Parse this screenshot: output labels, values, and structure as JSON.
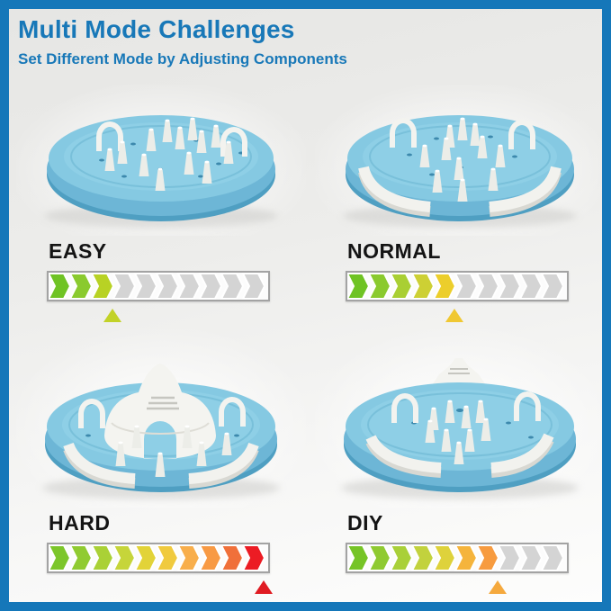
{
  "page": {
    "border_color": "#1577b9",
    "background_top": "#e6e6e4",
    "background_bottom": "#fdfdfc"
  },
  "header": {
    "title": "Multi Mode Challenges",
    "subtitle": "Set Different Mode by Adjusting Components",
    "title_color": "#1878b8"
  },
  "bar": {
    "segments": 10,
    "segment_width": 24,
    "empty_color": "#d4d4d4",
    "separator_color": "#ffffff",
    "frame_color": "#a3a3a3"
  },
  "modes": [
    {
      "id": "easy",
      "label": "EASY",
      "filled": 3,
      "segment_colors": [
        "#6fc324",
        "#8aca2e",
        "#b8d224"
      ],
      "marker_color": "#c2d228"
    },
    {
      "id": "normal",
      "label": "NORMAL",
      "filled": 5,
      "segment_colors": [
        "#6fc324",
        "#8aca2e",
        "#a9cf33",
        "#cdd034",
        "#ecce2b"
      ],
      "marker_color": "#f0c832"
    },
    {
      "id": "hard",
      "label": "HARD",
      "filled": 10,
      "segment_colors": [
        "#7cc62a",
        "#90cb31",
        "#aad136",
        "#c6d53a",
        "#e2d338",
        "#f0ca3e",
        "#f8ae4b",
        "#f89a44",
        "#f0703a",
        "#ec1c24"
      ],
      "marker_color": "#e01b22"
    },
    {
      "id": "diy",
      "label": "DIY",
      "filled": 7,
      "segment_colors": [
        "#76c426",
        "#8fca31",
        "#a9d039",
        "#c2d23d",
        "#ded23b",
        "#f5b43c",
        "#f79b3f"
      ],
      "marker_color": "#f5a93d"
    }
  ],
  "products": {
    "disc_color": "#85c9e2",
    "disc_rim_color": "#4f9fc2",
    "component_color": "#efefeb"
  }
}
